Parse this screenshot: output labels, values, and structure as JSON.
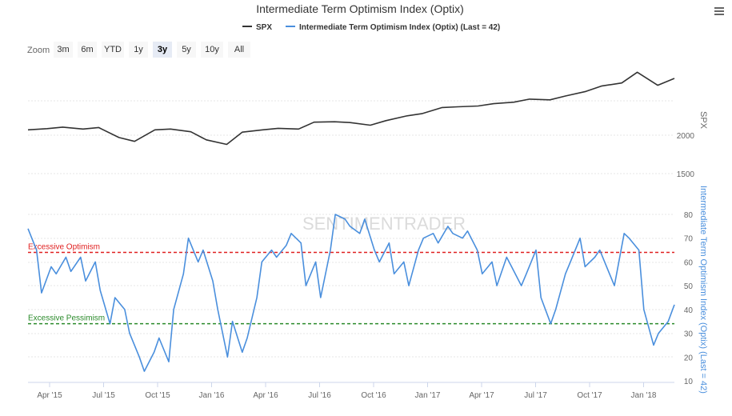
{
  "chart_data": {
    "type": "line",
    "title": "Intermediate Term Optimism Index (Optix)",
    "legend": [
      {
        "name": "SPX",
        "color": "#333333"
      },
      {
        "name": "Intermediate Term Optimism Index (Optix) (Last = 42)",
        "color": "#4a8fdd"
      }
    ],
    "x_ticks": [
      "Apr '15",
      "Jul '15",
      "Oct '15",
      "Jan '16",
      "Apr '16",
      "Jul '16",
      "Oct '16",
      "Jan '17",
      "Apr '17",
      "Jul '17",
      "Oct '17",
      "Jan '18"
    ],
    "spx": {
      "axis_label": "SPX",
      "ticks": [
        1500,
        2000
      ],
      "values": [
        2070,
        2085,
        2105,
        2080,
        2100,
        1970,
        1920,
        2070,
        2080,
        2045,
        1940,
        1880,
        2040,
        2070,
        2090,
        2080,
        2170,
        2175,
        2165,
        2130,
        2190,
        2250,
        2280,
        2360,
        2370,
        2380,
        2410,
        2430,
        2470,
        2460,
        2510,
        2570,
        2640,
        2680,
        2820,
        2650,
        2740
      ]
    },
    "optix": {
      "axis_label": "Intermediate Term Optimism Index (Optix) (Last = 42)",
      "ticks": [
        10,
        20,
        30,
        40,
        50,
        60,
        70,
        80
      ],
      "values": [
        74,
        65,
        47,
        58,
        55,
        62,
        56,
        62,
        52,
        60,
        48,
        34,
        45,
        40,
        30,
        20,
        14,
        22,
        28,
        18,
        40,
        55,
        70,
        60,
        65,
        52,
        40,
        20,
        35,
        22,
        28,
        45,
        60,
        65,
        62,
        67,
        72,
        68,
        50,
        60,
        45,
        65,
        80,
        78,
        75,
        72,
        78,
        65,
        60,
        68,
        55,
        60,
        50,
        65,
        70,
        72,
        68,
        75,
        72,
        70,
        73,
        65,
        55,
        60,
        50,
        62,
        58,
        50,
        55,
        65,
        45,
        34,
        40,
        55,
        60,
        70,
        58,
        62,
        65,
        55,
        50,
        72,
        70,
        65,
        40,
        25,
        30,
        35,
        42
      ]
    },
    "bands": [
      {
        "label": "Excessive Optimism",
        "value": 64,
        "color": "#e02020"
      },
      {
        "label": "Excessive Pessimism",
        "value": 34,
        "color": "#2a8a2a"
      }
    ],
    "watermark": "SENTIMENTRADER"
  },
  "zoom": {
    "label": "Zoom",
    "buttons": [
      "3m",
      "6m",
      "YTD",
      "1y",
      "3y",
      "5y",
      "10y",
      "All"
    ],
    "selected": "3y"
  },
  "menu_icon": "hamburger-icon"
}
